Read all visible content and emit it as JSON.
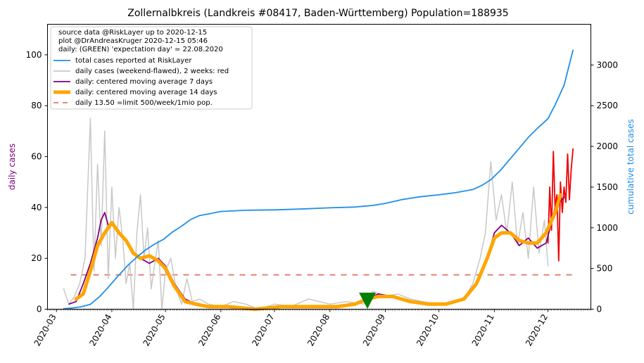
{
  "chart_data": {
    "type": "line",
    "title": "Zollernalbkreis (Landkreis #08417, Baden-Württemberg) Population=188935",
    "ylabel_left": "daily cases",
    "ylabel_right": "cumulative total cases",
    "ylim_left": [
      0,
      112
    ],
    "ylim_right": [
      0,
      3500
    ],
    "yticks_left": [
      0,
      20,
      40,
      60,
      80,
      100
    ],
    "yticks_right": [
      0,
      500,
      1000,
      1500,
      2000,
      2500,
      3000
    ],
    "x_range": [
      "2020-02-25",
      "2020-12-25"
    ],
    "x_ticks": [
      "2020-03",
      "2020-04",
      "2020-05",
      "2020-06",
      "2020-07",
      "2020-08",
      "2020-09",
      "2020-10",
      "2020-11",
      "2020-12"
    ],
    "grid": false,
    "legend_placement": "top-left",
    "info_lines": [
      "source data @RiskLayer up to 2020-12-15",
      "plot @DrAndreasKruger 2020-12-15 05:46",
      "daily: (GREEN) 'expectation day' = 22.08.2020"
    ],
    "expectation_day": {
      "date": "2020-08-22",
      "y": 4,
      "color": "#008000"
    },
    "limit_line": {
      "value": 13.5,
      "from": "2020-03-09",
      "to": "2020-12-15",
      "color": "#e8776e"
    },
    "legend": [
      {
        "label": "total cases reported at RiskLayer",
        "color": "#1f8fe8",
        "style": "line"
      },
      {
        "label": "daily cases (weekend-flawed), 2 weeks: red",
        "color": "#c8c8c8",
        "style": "line"
      },
      {
        "label": "daily: centered moving average 7 days",
        "color": "#800080",
        "style": "line"
      },
      {
        "label": "daily: centered moving average 14 days",
        "color": "#ffa500",
        "style": "thick"
      },
      {
        "label": "daily 13.50 =limit 500/week/1mio pop.",
        "color": "#e8776e",
        "style": "dash"
      }
    ],
    "series": [
      {
        "name": "total cases reported at RiskLayer",
        "axis": "right",
        "color": "#1f8fe8",
        "x": [
          "2020-03-05",
          "2020-03-10",
          "2020-03-15",
          "2020-03-20",
          "2020-03-25",
          "2020-03-30",
          "2020-04-05",
          "2020-04-10",
          "2020-04-15",
          "2020-04-20",
          "2020-04-25",
          "2020-04-30",
          "2020-05-05",
          "2020-05-10",
          "2020-05-15",
          "2020-05-20",
          "2020-05-25",
          "2020-06-01",
          "2020-06-15",
          "2020-07-01",
          "2020-07-15",
          "2020-08-01",
          "2020-08-15",
          "2020-08-25",
          "2020-09-01",
          "2020-09-10",
          "2020-09-20",
          "2020-10-01",
          "2020-10-10",
          "2020-10-20",
          "2020-10-25",
          "2020-10-30",
          "2020-11-05",
          "2020-11-10",
          "2020-11-15",
          "2020-11-20",
          "2020-11-25",
          "2020-12-01",
          "2020-12-05",
          "2020-12-10",
          "2020-12-15"
        ],
        "values": [
          5,
          15,
          30,
          60,
          150,
          270,
          420,
          540,
          640,
          730,
          800,
          860,
          950,
          1020,
          1100,
          1150,
          1170,
          1200,
          1215,
          1220,
          1230,
          1245,
          1255,
          1275,
          1300,
          1345,
          1380,
          1405,
          1430,
          1470,
          1520,
          1590,
          1720,
          1850,
          1980,
          2110,
          2220,
          2340,
          2510,
          2750,
          3180
        ]
      },
      {
        "name": "daily cases (weekend-flawed), 2 weeks: red",
        "axis": "left",
        "color": "#c8c8c8",
        "x": [
          "2020-03-05",
          "2020-03-08",
          "2020-03-11",
          "2020-03-14",
          "2020-03-17",
          "2020-03-20",
          "2020-03-22",
          "2020-03-24",
          "2020-03-26",
          "2020-03-28",
          "2020-03-30",
          "2020-04-01",
          "2020-04-03",
          "2020-04-05",
          "2020-04-07",
          "2020-04-09",
          "2020-04-11",
          "2020-04-13",
          "2020-04-15",
          "2020-04-17",
          "2020-04-19",
          "2020-04-21",
          "2020-04-23",
          "2020-04-25",
          "2020-04-27",
          "2020-04-29",
          "2020-05-01",
          "2020-05-04",
          "2020-05-07",
          "2020-05-10",
          "2020-05-13",
          "2020-05-16",
          "2020-05-20",
          "2020-05-25",
          "2020-06-01",
          "2020-06-08",
          "2020-06-15",
          "2020-06-22",
          "2020-07-01",
          "2020-07-10",
          "2020-07-20",
          "2020-08-01",
          "2020-08-10",
          "2020-08-20",
          "2020-08-25",
          "2020-09-01",
          "2020-09-08",
          "2020-09-15",
          "2020-09-22",
          "2020-10-01",
          "2020-10-08",
          "2020-10-15",
          "2020-10-20",
          "2020-10-24",
          "2020-10-27",
          "2020-10-30",
          "2020-11-02",
          "2020-11-05",
          "2020-11-08",
          "2020-11-11",
          "2020-11-14",
          "2020-11-17",
          "2020-11-20",
          "2020-11-23",
          "2020-11-26",
          "2020-11-29",
          "2020-12-01"
        ],
        "values": [
          8,
          2,
          5,
          10,
          20,
          75,
          15,
          57,
          25,
          70,
          12,
          48,
          20,
          40,
          28,
          10,
          18,
          0,
          30,
          45,
          20,
          32,
          8,
          18,
          27,
          0,
          15,
          20,
          8,
          2,
          12,
          3,
          4,
          2,
          1,
          3,
          2,
          0,
          2,
          1,
          4,
          2,
          3,
          2,
          7,
          5,
          6,
          4,
          3,
          2,
          3,
          4,
          10,
          20,
          30,
          58,
          35,
          45,
          30,
          50,
          25,
          38,
          20,
          48,
          22,
          35,
          17
        ]
      },
      {
        "name": "daily cases, last 2 weeks",
        "axis": "left",
        "color": "#ee0000",
        "x": [
          "2020-12-01",
          "2020-12-02",
          "2020-12-03",
          "2020-12-04",
          "2020-12-05",
          "2020-12-06",
          "2020-12-07",
          "2020-12-08",
          "2020-12-09",
          "2020-12-10",
          "2020-12-11",
          "2020-12-12",
          "2020-12-13",
          "2020-12-14",
          "2020-12-15"
        ],
        "values": [
          26,
          48,
          31,
          62,
          40,
          45,
          19,
          50,
          38,
          48,
          42,
          61,
          43,
          55,
          63
        ]
      },
      {
        "name": "daily: centered moving average 7 days",
        "axis": "left",
        "color": "#800080",
        "x": [
          "2020-03-08",
          "2020-03-12",
          "2020-03-16",
          "2020-03-20",
          "2020-03-24",
          "2020-03-26",
          "2020-03-28",
          "2020-03-30",
          "2020-04-02",
          "2020-04-05",
          "2020-04-09",
          "2020-04-13",
          "2020-04-17",
          "2020-04-22",
          "2020-04-27",
          "2020-05-01",
          "2020-05-06",
          "2020-05-12",
          "2020-05-18",
          "2020-05-25",
          "2020-06-05",
          "2020-06-20",
          "2020-07-05",
          "2020-07-20",
          "2020-08-05",
          "2020-08-15",
          "2020-08-22",
          "2020-08-28",
          "2020-09-05",
          "2020-09-15",
          "2020-09-25",
          "2020-10-05",
          "2020-10-15",
          "2020-10-22",
          "2020-10-28",
          "2020-11-01",
          "2020-11-05",
          "2020-11-10",
          "2020-11-15",
          "2020-11-20",
          "2020-11-25",
          "2020-11-30",
          "2020-12-05",
          "2020-12-10"
        ],
        "values": [
          2,
          3,
          10,
          18,
          28,
          35,
          38,
          33,
          33,
          30,
          27,
          22,
          20,
          18,
          20,
          17,
          10,
          4,
          2,
          1,
          1,
          0,
          1,
          1,
          1,
          2,
          4,
          6,
          5,
          3,
          2,
          2,
          4,
          10,
          20,
          30,
          33,
          30,
          25,
          28,
          24,
          26,
          40,
          44
        ]
      },
      {
        "name": "daily: centered moving average 14 days",
        "axis": "left",
        "color": "#ffa500",
        "x": [
          "2020-03-12",
          "2020-03-16",
          "2020-03-20",
          "2020-03-24",
          "2020-03-28",
          "2020-04-01",
          "2020-04-05",
          "2020-04-09",
          "2020-04-13",
          "2020-04-17",
          "2020-04-22",
          "2020-04-27",
          "2020-05-01",
          "2020-05-06",
          "2020-05-12",
          "2020-05-18",
          "2020-05-25",
          "2020-06-05",
          "2020-06-20",
          "2020-07-05",
          "2020-07-20",
          "2020-08-05",
          "2020-08-15",
          "2020-08-22",
          "2020-08-28",
          "2020-09-05",
          "2020-09-15",
          "2020-09-25",
          "2020-10-05",
          "2020-10-15",
          "2020-10-22",
          "2020-10-28",
          "2020-11-01",
          "2020-11-05",
          "2020-11-10",
          "2020-11-15",
          "2020-11-20",
          "2020-11-25",
          "2020-11-30",
          "2020-12-05",
          "2020-12-08"
        ],
        "values": [
          4,
          6,
          15,
          25,
          30,
          34,
          30,
          27,
          22,
          20,
          21,
          19,
          16,
          9,
          3,
          2,
          1,
          1,
          0,
          1,
          1,
          1,
          2,
          4,
          5,
          5,
          3,
          2,
          2,
          4,
          10,
          20,
          28,
          30,
          30,
          27,
          26,
          26,
          30,
          38,
          45
        ]
      }
    ]
  }
}
